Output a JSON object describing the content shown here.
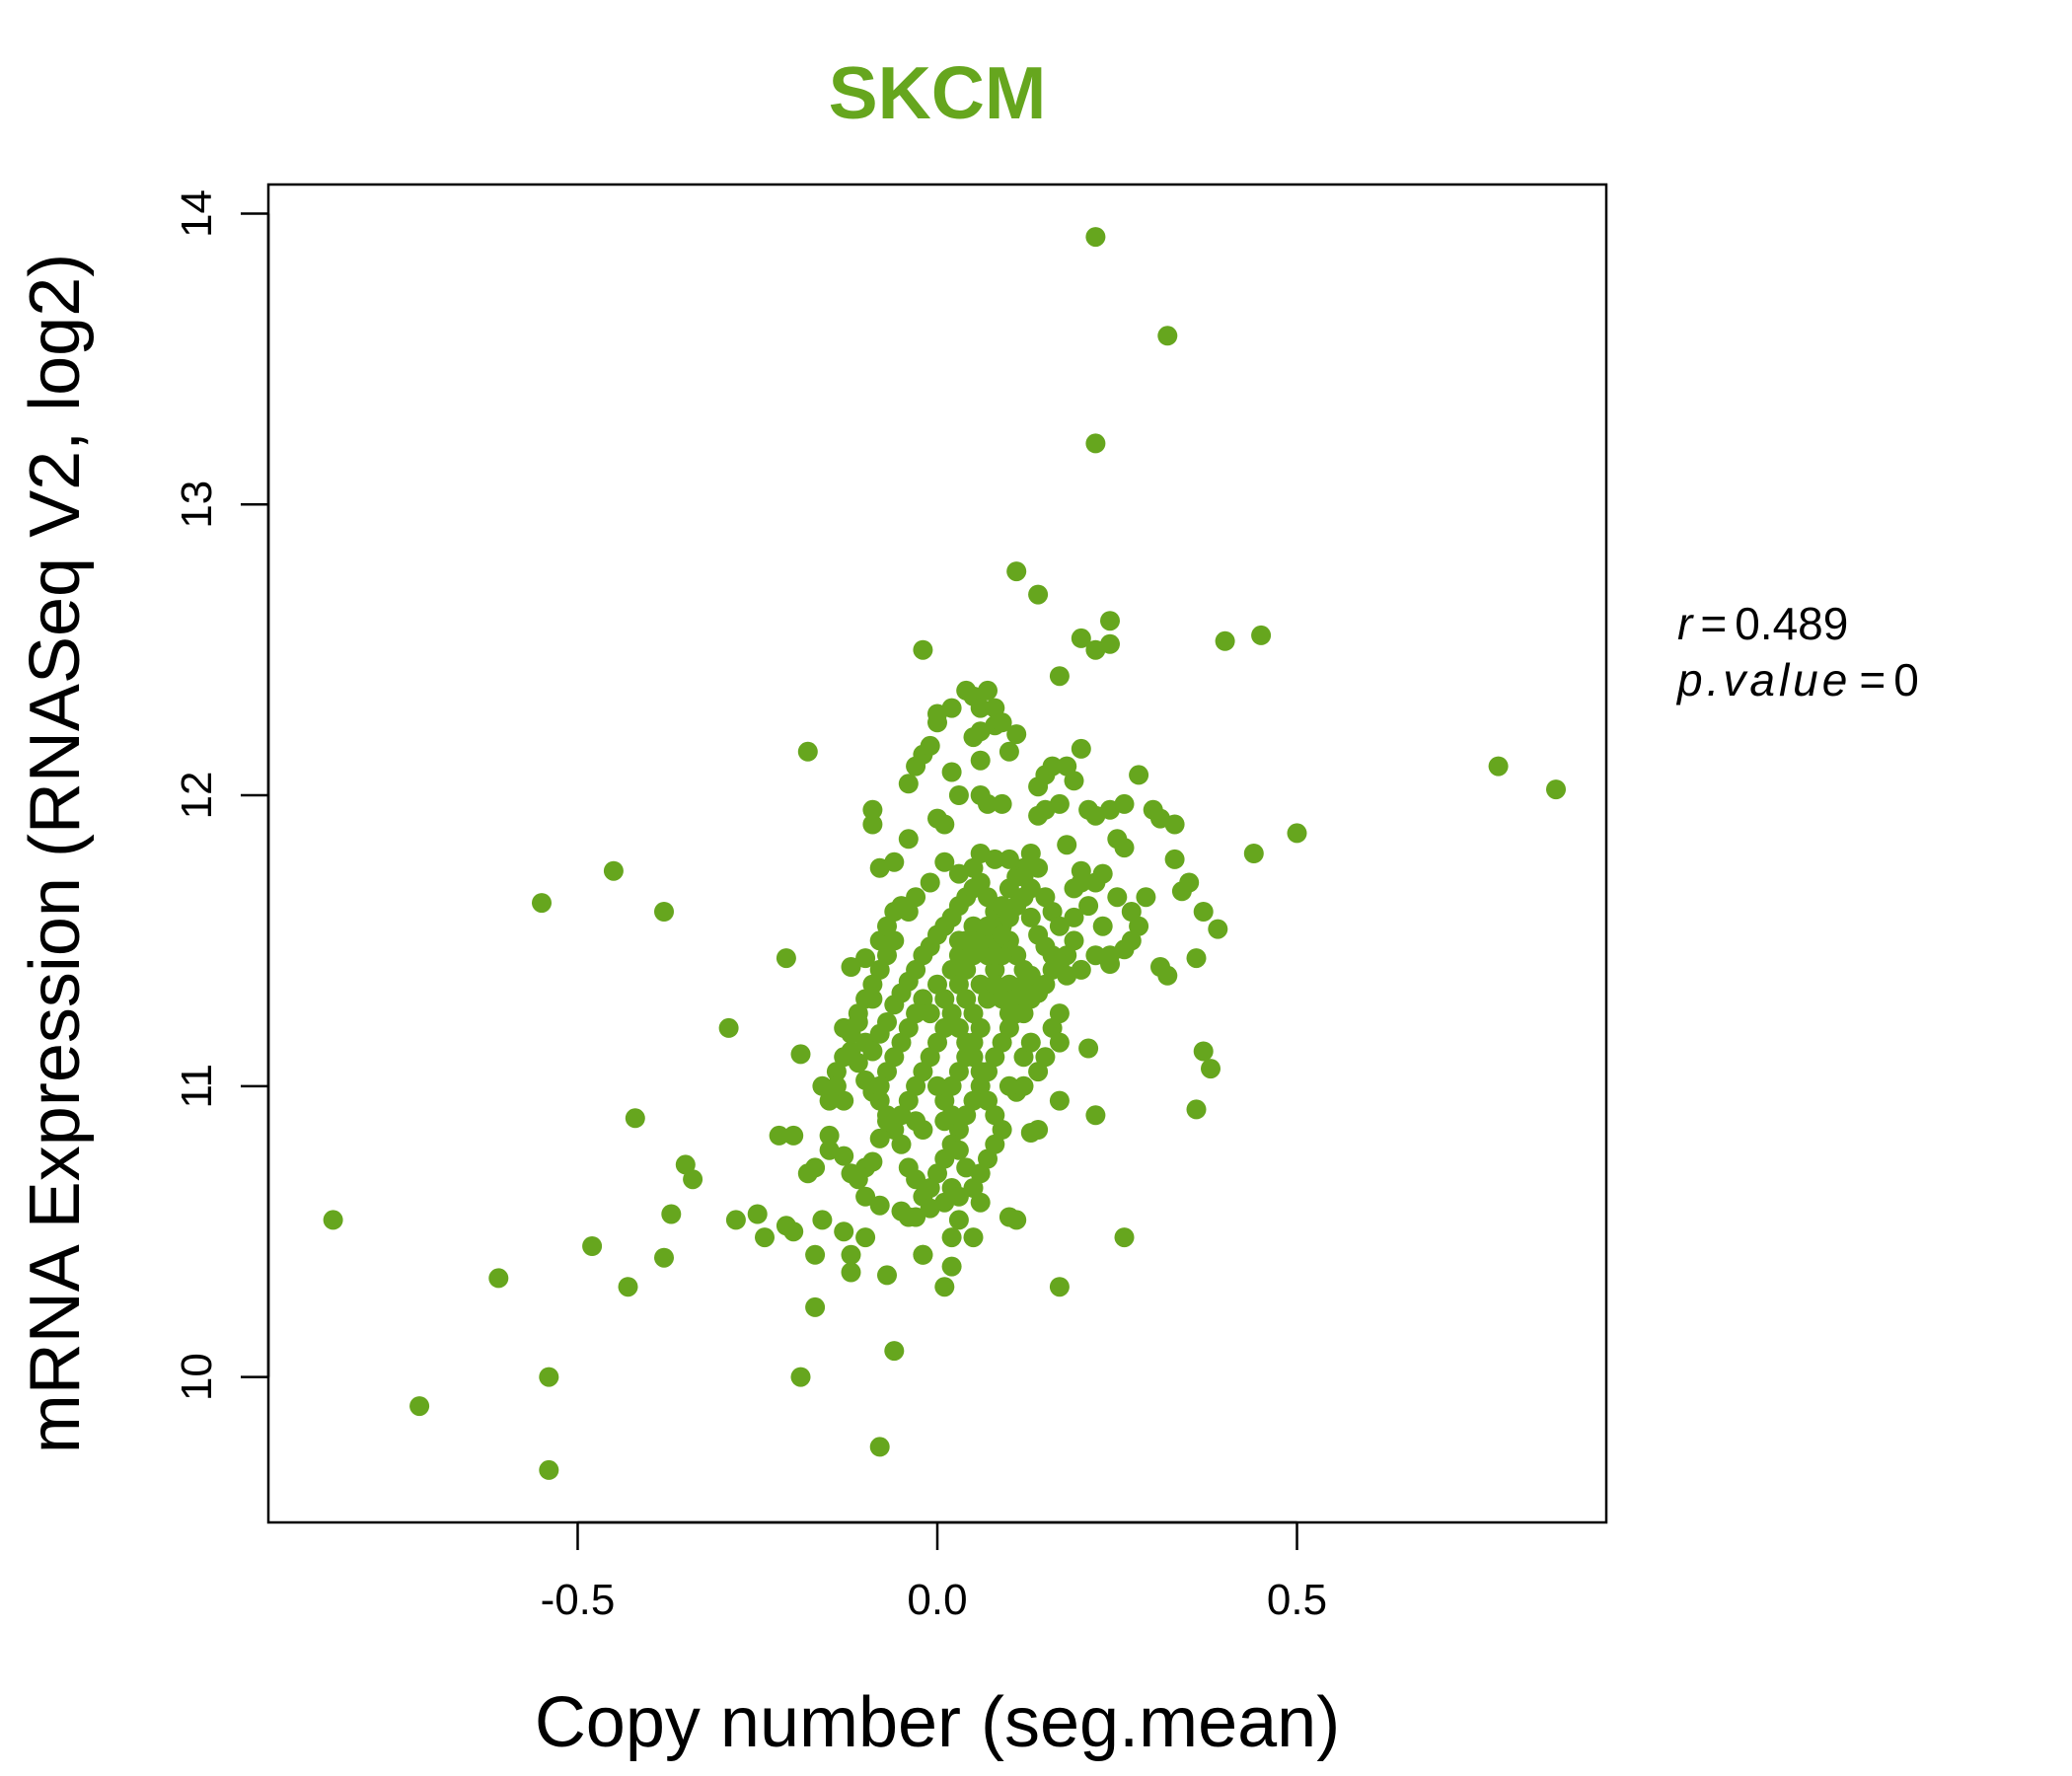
{
  "chart_data": {
    "type": "scatter",
    "title": "SKCM",
    "xlabel": "Copy number (seg.mean)",
    "ylabel": "mRNA Expression (RNASeq V2, log2)",
    "xlim": [
      -0.93,
      0.93
    ],
    "ylim": [
      9.5,
      14.1
    ],
    "x_ticks": [
      -0.5,
      0.0,
      0.5
    ],
    "x_tick_labels": [
      "-0.5",
      "0.0",
      "0.5"
    ],
    "y_ticks": [
      10,
      11,
      12,
      13,
      14
    ],
    "y_tick_labels": [
      "10",
      "11",
      "12",
      "13",
      "14"
    ],
    "grid": false,
    "legend": "none",
    "colors": {
      "title": "#66a61e",
      "points": "#66a61e",
      "axis": "#000000"
    },
    "annotation": {
      "r_label": "r",
      "eq": "=",
      "r_value": "0.489",
      "p_label": "p.value",
      "p_value": "0"
    },
    "points": [
      [
        0.22,
        13.92
      ],
      [
        0.32,
        13.58
      ],
      [
        0.22,
        13.21
      ],
      [
        0.11,
        12.77
      ],
      [
        0.14,
        12.69
      ],
      [
        -0.02,
        12.5
      ],
      [
        0.2,
        12.54
      ],
      [
        0.22,
        12.5
      ],
      [
        0.24,
        12.52
      ],
      [
        0.24,
        12.6
      ],
      [
        0.4,
        12.53
      ],
      [
        0.45,
        12.55
      ],
      [
        0.17,
        12.41
      ],
      [
        0.78,
        12.1
      ],
      [
        0.86,
        12.02
      ],
      [
        -0.18,
        12.15
      ],
      [
        0.5,
        11.87
      ],
      [
        0.44,
        11.8
      ],
      [
        -0.55,
        11.63
      ],
      [
        -0.45,
        11.74
      ],
      [
        -0.38,
        11.6
      ],
      [
        -0.21,
        11.44
      ],
      [
        -0.29,
        11.2
      ],
      [
        -0.19,
        11.11
      ],
      [
        -0.42,
        10.89
      ],
      [
        -0.35,
        10.73
      ],
      [
        -0.34,
        10.68
      ],
      [
        -0.37,
        10.56
      ],
      [
        -0.28,
        10.54
      ],
      [
        -0.25,
        10.56
      ],
      [
        -0.84,
        10.54
      ],
      [
        -0.48,
        10.45
      ],
      [
        -0.38,
        10.41
      ],
      [
        -0.43,
        10.31
      ],
      [
        -0.61,
        10.34
      ],
      [
        -0.54,
        10.0
      ],
      [
        -0.72,
        9.9
      ],
      [
        -0.54,
        9.68
      ],
      [
        -0.08,
        9.76
      ],
      [
        -0.19,
        10.0
      ],
      [
        -0.06,
        10.09
      ],
      [
        -0.17,
        10.24
      ],
      [
        0.17,
        10.31
      ],
      [
        0.26,
        10.48
      ],
      [
        0.01,
        10.31
      ],
      [
        0.02,
        10.38
      ],
      [
        -0.07,
        10.35
      ],
      [
        -0.12,
        10.36
      ],
      [
        -0.02,
        10.42
      ],
      [
        -0.17,
        10.42
      ],
      [
        -0.22,
        10.83
      ],
      [
        -0.2,
        10.83
      ],
      [
        -0.15,
        10.83
      ],
      [
        -0.2,
        10.5
      ],
      [
        -0.24,
        10.48
      ],
      [
        -0.21,
        10.52
      ],
      [
        -0.16,
        10.54
      ],
      [
        -0.13,
        10.5
      ],
      [
        -0.1,
        10.48
      ],
      [
        -0.12,
        10.42
      ],
      [
        0.22,
        10.9
      ],
      [
        0.24,
        11.42
      ],
      [
        0.31,
        11.41
      ],
      [
        0.32,
        11.38
      ],
      [
        0.36,
        11.44
      ],
      [
        0.37,
        11.12
      ],
      [
        0.38,
        11.06
      ],
      [
        0.36,
        10.92
      ],
      [
        0.21,
        11.13
      ],
      [
        0.17,
        11.15
      ],
      [
        0.14,
        10.85
      ],
      [
        0.13,
        10.84
      ],
      [
        0.17,
        10.95
      ],
      [
        0.11,
        10.54
      ],
      [
        0.1,
        10.55
      ],
      [
        0.06,
        10.6
      ],
      [
        0.05,
        10.48
      ],
      [
        0.03,
        10.54
      ],
      [
        0.02,
        10.48
      ],
      [
        -0.02,
        10.42
      ],
      [
        -0.04,
        10.55
      ],
      [
        -0.05,
        10.57
      ],
      [
        -0.08,
        10.59
      ],
      [
        -0.1,
        10.72
      ],
      [
        -0.12,
        10.7
      ],
      [
        -0.13,
        10.76
      ],
      [
        -0.15,
        10.78
      ],
      [
        -0.17,
        10.72
      ],
      [
        -0.18,
        10.7
      ],
      [
        -0.13,
        10.95
      ],
      [
        -0.16,
        11.0
      ],
      [
        -0.14,
        11.05
      ],
      [
        -0.12,
        11.12
      ],
      [
        -0.1,
        11.15
      ],
      [
        -0.13,
        11.2
      ],
      [
        -0.11,
        11.25
      ],
      [
        -0.09,
        11.3
      ],
      [
        -0.12,
        11.41
      ],
      [
        -0.1,
        11.44
      ],
      [
        -0.08,
        11.5
      ],
      [
        -0.07,
        11.55
      ],
      [
        -0.06,
        11.6
      ],
      [
        -0.05,
        11.62
      ],
      [
        -0.08,
        11.75
      ],
      [
        -0.04,
        11.85
      ],
      [
        -0.06,
        11.77
      ],
      [
        -0.09,
        11.9
      ],
      [
        -0.09,
        11.95
      ],
      [
        -0.04,
        12.04
      ],
      [
        -0.03,
        12.1
      ],
      [
        -0.02,
        12.14
      ],
      [
        -0.01,
        12.17
      ],
      [
        0.0,
        12.25
      ],
      [
        0.0,
        12.28
      ],
      [
        0.02,
        12.3
      ],
      [
        0.04,
        12.36
      ],
      [
        0.05,
        12.34
      ],
      [
        0.06,
        12.3
      ],
      [
        0.07,
        12.36
      ],
      [
        0.08,
        12.3
      ],
      [
        0.08,
        12.24
      ],
      [
        0.09,
        12.25
      ],
      [
        0.06,
        12.22
      ],
      [
        0.05,
        12.2
      ],
      [
        0.11,
        12.21
      ],
      [
        0.1,
        12.15
      ],
      [
        0.06,
        12.12
      ],
      [
        0.02,
        12.08
      ],
      [
        0.03,
        12.0
      ],
      [
        0.06,
        12.0
      ],
      [
        0.07,
        11.97
      ],
      [
        0.09,
        11.97
      ],
      [
        0.01,
        11.9
      ],
      [
        0.0,
        11.92
      ],
      [
        0.14,
        12.03
      ],
      [
        0.15,
        12.07
      ],
      [
        0.16,
        12.1
      ],
      [
        0.18,
        12.1
      ],
      [
        0.2,
        12.16
      ],
      [
        0.19,
        12.05
      ],
      [
        0.21,
        11.95
      ],
      [
        0.22,
        11.93
      ],
      [
        0.24,
        11.95
      ],
      [
        0.26,
        11.97
      ],
      [
        0.28,
        12.07
      ],
      [
        0.3,
        11.95
      ],
      [
        0.31,
        11.92
      ],
      [
        0.33,
        11.9
      ],
      [
        0.33,
        11.78
      ],
      [
        0.26,
        11.82
      ],
      [
        0.25,
        11.85
      ],
      [
        0.23,
        11.73
      ],
      [
        0.22,
        11.7
      ],
      [
        0.2,
        11.74
      ],
      [
        0.19,
        11.68
      ],
      [
        0.18,
        11.83
      ],
      [
        0.17,
        11.97
      ],
      [
        0.15,
        11.95
      ],
      [
        0.14,
        11.93
      ],
      [
        0.13,
        11.8
      ],
      [
        0.12,
        11.75
      ],
      [
        0.1,
        11.78
      ],
      [
        0.08,
        11.78
      ],
      [
        0.06,
        11.8
      ],
      [
        0.05,
        11.75
      ],
      [
        0.03,
        11.73
      ],
      [
        0.01,
        11.77
      ],
      [
        -0.01,
        11.7
      ],
      [
        -0.03,
        11.65
      ],
      [
        -0.04,
        11.6
      ],
      [
        0.27,
        11.6
      ],
      [
        0.28,
        11.55
      ],
      [
        0.29,
        11.65
      ],
      [
        0.34,
        11.67
      ],
      [
        0.35,
        11.7
      ],
      [
        0.37,
        11.6
      ],
      [
        0.39,
        11.54
      ],
      [
        0.27,
        11.5
      ],
      [
        0.26,
        11.47
      ],
      [
        0.24,
        11.45
      ],
      [
        0.22,
        11.45
      ],
      [
        0.2,
        11.4
      ],
      [
        0.19,
        11.5
      ],
      [
        0.18,
        11.45
      ],
      [
        0.16,
        11.4
      ],
      [
        0.15,
        11.35
      ],
      [
        0.13,
        11.3
      ],
      [
        0.12,
        11.35
      ],
      [
        0.11,
        11.25
      ],
      [
        0.1,
        11.2
      ],
      [
        0.09,
        11.15
      ],
      [
        0.08,
        11.1
      ],
      [
        0.07,
        11.05
      ],
      [
        0.06,
        11.0
      ],
      [
        0.05,
        10.95
      ],
      [
        0.04,
        10.9
      ],
      [
        0.03,
        10.85
      ],
      [
        0.02,
        10.8
      ],
      [
        0.01,
        10.75
      ],
      [
        0.0,
        10.7
      ],
      [
        -0.01,
        10.65
      ],
      [
        -0.02,
        10.62
      ],
      [
        -0.03,
        10.68
      ],
      [
        -0.04,
        10.72
      ],
      [
        -0.05,
        10.8
      ],
      [
        -0.06,
        10.85
      ],
      [
        -0.07,
        10.9
      ],
      [
        -0.08,
        10.95
      ],
      [
        -0.09,
        10.98
      ],
      [
        -0.1,
        11.02
      ],
      [
        -0.11,
        11.08
      ],
      [
        -0.09,
        11.12
      ],
      [
        -0.08,
        11.18
      ],
      [
        -0.07,
        11.22
      ],
      [
        -0.06,
        11.28
      ],
      [
        -0.05,
        11.32
      ],
      [
        -0.04,
        11.36
      ],
      [
        -0.03,
        11.4
      ],
      [
        -0.02,
        11.45
      ],
      [
        -0.01,
        11.48
      ],
      [
        0.0,
        11.52
      ],
      [
        0.01,
        11.55
      ],
      [
        0.02,
        11.58
      ],
      [
        0.03,
        11.62
      ],
      [
        0.04,
        11.65
      ],
      [
        0.05,
        11.68
      ],
      [
        0.06,
        11.7
      ],
      [
        0.07,
        11.65
      ],
      [
        0.08,
        11.6
      ],
      [
        0.09,
        11.55
      ],
      [
        0.1,
        11.5
      ],
      [
        0.11,
        11.45
      ],
      [
        0.12,
        11.4
      ],
      [
        0.13,
        11.38
      ],
      [
        0.14,
        11.32
      ],
      [
        0.02,
        11.4
      ],
      [
        0.03,
        11.35
      ],
      [
        0.04,
        11.3
      ],
      [
        0.05,
        11.25
      ],
      [
        0.06,
        11.2
      ],
      [
        0.07,
        11.3
      ],
      [
        0.08,
        11.4
      ],
      [
        0.09,
        11.45
      ],
      [
        0.1,
        11.35
      ],
      [
        0.01,
        11.2
      ],
      [
        0.0,
        11.15
      ],
      [
        -0.01,
        11.1
      ],
      [
        -0.02,
        11.05
      ],
      [
        -0.03,
        11.0
      ],
      [
        -0.04,
        10.95
      ],
      [
        -0.05,
        10.9
      ],
      [
        0.01,
        10.95
      ],
      [
        0.02,
        11.0
      ],
      [
        0.03,
        11.05
      ],
      [
        0.04,
        11.1
      ],
      [
        0.05,
        11.15
      ],
      [
        0.06,
        11.35
      ],
      [
        0.07,
        11.45
      ],
      [
        0.08,
        11.5
      ],
      [
        0.09,
        11.62
      ],
      [
        0.1,
        11.68
      ],
      [
        0.11,
        11.72
      ],
      [
        0.12,
        11.65
      ],
      [
        0.13,
        11.58
      ],
      [
        0.14,
        11.52
      ],
      [
        0.15,
        11.48
      ],
      [
        0.16,
        11.45
      ],
      [
        0.17,
        11.42
      ],
      [
        0.18,
        11.38
      ],
      [
        0.03,
        11.45
      ],
      [
        0.04,
        11.5
      ],
      [
        0.05,
        11.55
      ],
      [
        -0.02,
        11.3
      ],
      [
        -0.03,
        11.25
      ],
      [
        -0.04,
        11.2
      ],
      [
        -0.05,
        11.15
      ],
      [
        -0.06,
        11.1
      ],
      [
        -0.07,
        11.05
      ],
      [
        -0.08,
        11.0
      ],
      [
        0.0,
        11.35
      ],
      [
        0.01,
        11.3
      ],
      [
        0.02,
        11.25
      ],
      [
        0.03,
        11.2
      ],
      [
        0.04,
        11.15
      ],
      [
        0.05,
        11.1
      ],
      [
        0.06,
        11.05
      ],
      [
        0.07,
        10.95
      ],
      [
        0.08,
        10.9
      ],
      [
        0.09,
        10.85
      ],
      [
        0.08,
        10.8
      ],
      [
        0.07,
        10.75
      ],
      [
        0.06,
        10.7
      ],
      [
        0.05,
        10.65
      ],
      [
        0.04,
        10.72
      ],
      [
        0.03,
        10.78
      ],
      [
        0.12,
        11.1
      ],
      [
        0.13,
        11.15
      ],
      [
        0.14,
        11.05
      ],
      [
        0.15,
        11.1
      ],
      [
        0.11,
        10.98
      ],
      [
        0.1,
        11.0
      ],
      [
        0.16,
        11.2
      ],
      [
        0.17,
        11.25
      ],
      [
        0.12,
        11.0
      ],
      [
        0.02,
        10.9
      ],
      [
        -0.02,
        10.85
      ],
      [
        -0.03,
        10.88
      ],
      [
        0.01,
        10.88
      ],
      [
        0.0,
        11.0
      ],
      [
        -0.01,
        11.25
      ],
      [
        0.03,
        11.5
      ],
      [
        0.04,
        11.4
      ],
      [
        0.05,
        11.45
      ],
      [
        0.06,
        11.5
      ],
      [
        0.07,
        11.55
      ],
      [
        0.08,
        11.35
      ],
      [
        0.09,
        11.3
      ],
      [
        0.1,
        11.25
      ],
      [
        0.11,
        11.3
      ],
      [
        0.12,
        11.25
      ],
      [
        -0.06,
        11.5
      ],
      [
        -0.07,
        11.45
      ],
      [
        -0.08,
        11.4
      ],
      [
        -0.09,
        11.35
      ],
      [
        -0.1,
        11.3
      ],
      [
        -0.11,
        11.22
      ],
      [
        -0.12,
        11.18
      ],
      [
        -0.13,
        11.1
      ],
      [
        -0.14,
        11.0
      ],
      [
        -0.15,
        10.95
      ],
      [
        0.14,
        11.75
      ],
      [
        0.15,
        11.65
      ],
      [
        0.16,
        11.6
      ],
      [
        0.17,
        11.55
      ],
      [
        0.13,
        11.68
      ],
      [
        0.12,
        11.72
      ],
      [
        0.11,
        11.62
      ],
      [
        0.1,
        11.58
      ],
      [
        0.09,
        11.52
      ],
      [
        0.08,
        11.45
      ],
      [
        0.2,
        11.7
      ],
      [
        0.21,
        11.62
      ],
      [
        0.19,
        11.58
      ],
      [
        0.23,
        11.55
      ],
      [
        0.25,
        11.65
      ],
      [
        0.01,
        10.6
      ],
      [
        0.02,
        10.65
      ],
      [
        0.03,
        10.62
      ],
      [
        -0.01,
        10.58
      ],
      [
        -0.03,
        10.55
      ],
      [
        -0.1,
        10.62
      ],
      [
        -0.11,
        10.68
      ],
      [
        -0.09,
        10.74
      ],
      [
        -0.08,
        10.82
      ],
      [
        -0.07,
        10.88
      ]
    ]
  }
}
